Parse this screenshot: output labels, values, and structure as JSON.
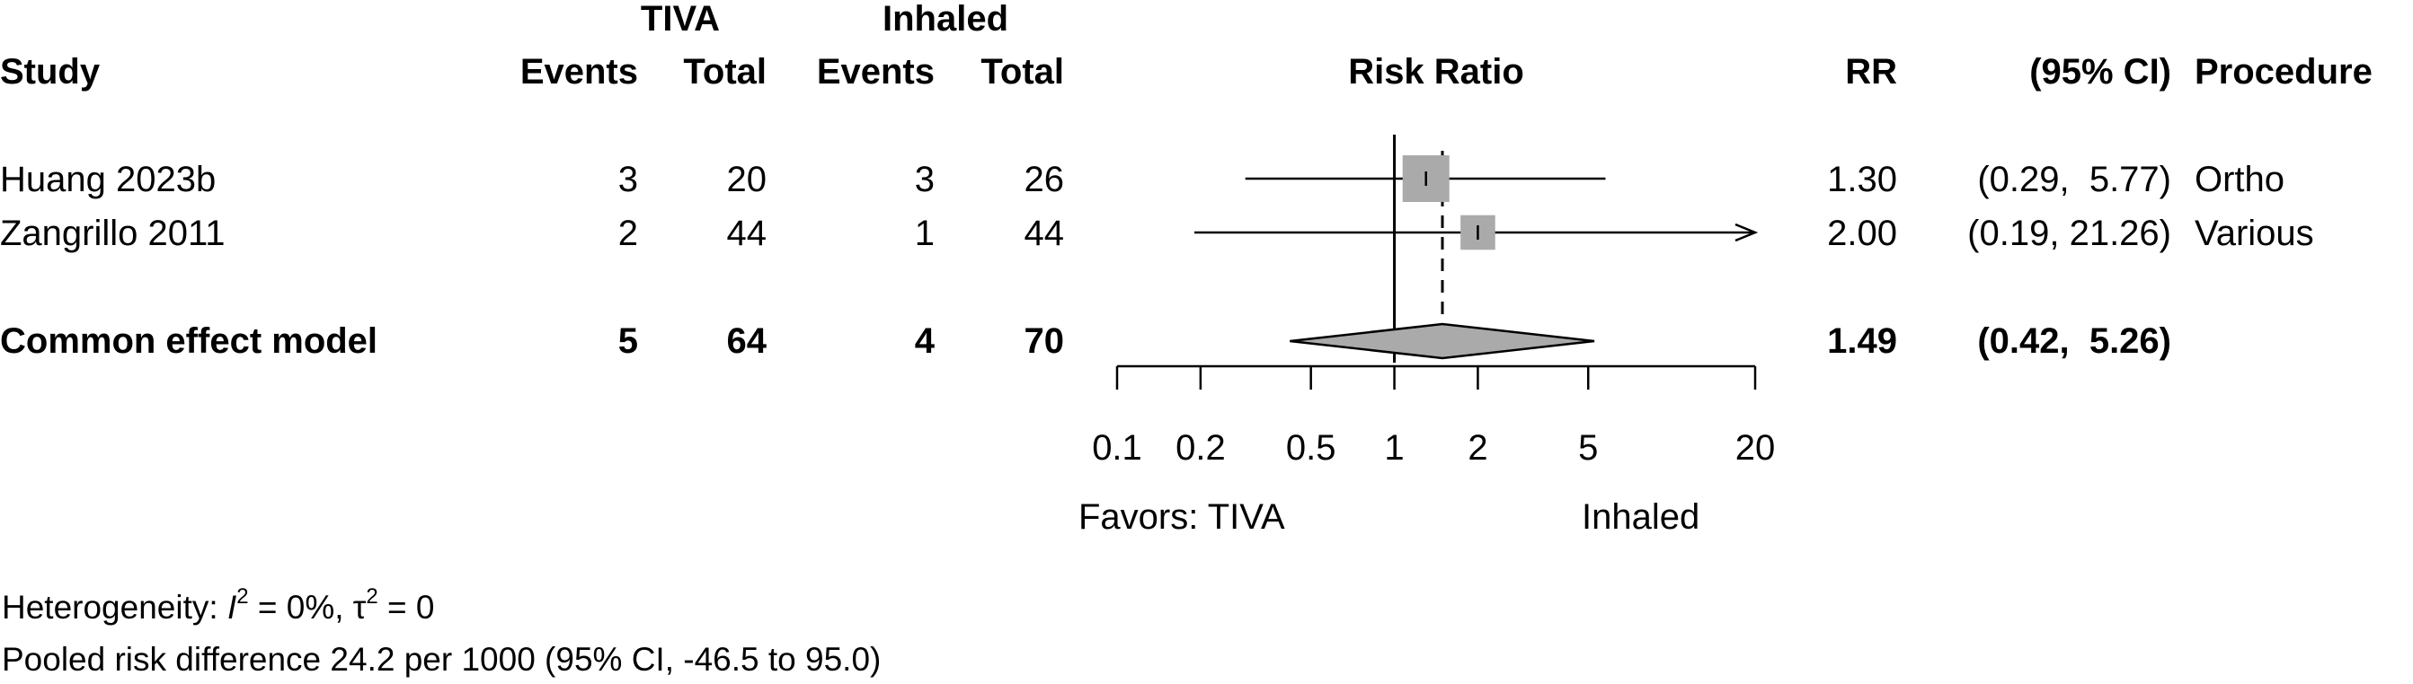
{
  "chart_data": {
    "type": "forest",
    "headers": {
      "group1": "TIVA",
      "group2": "Inhaled",
      "study": "Study",
      "events": "Events",
      "total": "Total",
      "plot": "Risk Ratio",
      "rr": "RR",
      "ci": "(95% CI)",
      "procedure": "Procedure"
    },
    "studies": [
      {
        "study": "Huang 2023b",
        "e1": "3",
        "n1": "20",
        "e2": "3",
        "n2": "26",
        "rr": 1.3,
        "lo": 0.29,
        "hi": 5.77,
        "weight": 1.0,
        "rr_text": "1.30",
        "ci_text": "(0.29,  5.77)",
        "procedure": "Ortho"
      },
      {
        "study": "Zangrillo 2011",
        "e1": "2",
        "n1": "44",
        "e2": "1",
        "n2": "44",
        "rr": 2.0,
        "lo": 0.19,
        "hi": 21.26,
        "weight": 0.55,
        "rr_text": "2.00",
        "ci_text": "(0.19, 21.26)",
        "procedure": "Various"
      }
    ],
    "pooled": {
      "label": "Common effect model",
      "e1": "5",
      "n1": "64",
      "e2": "4",
      "n2": "70",
      "rr": 1.49,
      "lo": 0.42,
      "hi": 5.26,
      "rr_text": "1.49",
      "ci_text": "(0.42,  5.26)"
    },
    "x_axis": {
      "scale": "log",
      "xlim": [
        0.1,
        20
      ],
      "ticks": [
        0.1,
        0.2,
        0.5,
        1,
        2,
        5,
        20
      ],
      "tick_labels": [
        "0.1",
        "0.2",
        "0.5",
        "1",
        "2",
        "5",
        "20"
      ],
      "favors_left": "Favors: TIVA",
      "favors_right": "Inhaled"
    }
  },
  "footer": {
    "heterogeneity_prefix": "Heterogeneity: ",
    "i2_symbol": "I",
    "i2_sup": "2",
    "i2_value": " = 0%, ",
    "tau_symbol": "τ",
    "tau_sup": "2",
    "tau_value": " = 0",
    "pooled_rd": "Pooled risk difference 24.2 per 1000 (95% CI, -46.5 to 95.0)"
  },
  "colors": {
    "square": "#aaaaaa",
    "diamond": "#aaaaaa",
    "line": "#000000"
  }
}
